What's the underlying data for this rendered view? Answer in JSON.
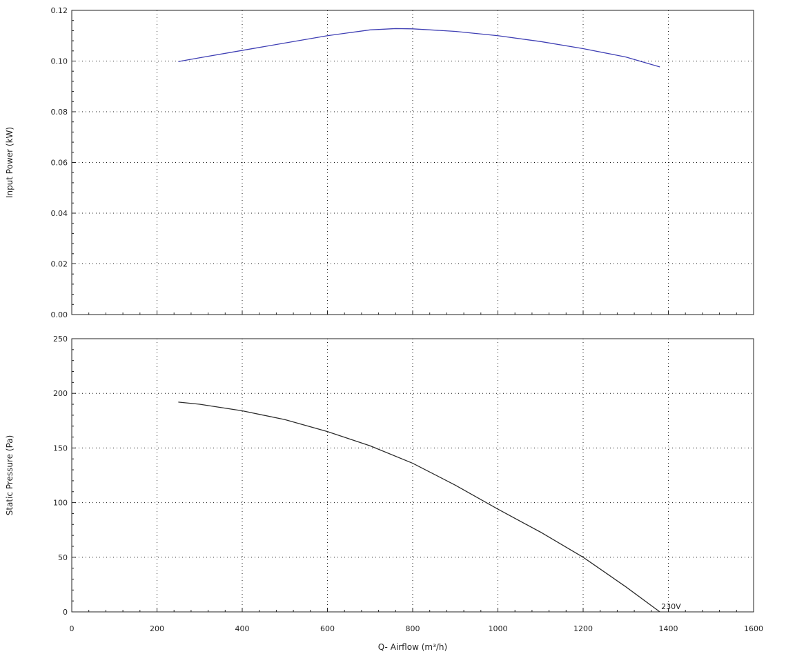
{
  "chart_data": {
    "type": "line",
    "x_axis": {
      "label": "Q- Airflow (m³/h)",
      "range": [
        0,
        1600
      ],
      "ticks": [
        0,
        200,
        400,
        600,
        800,
        1000,
        1200,
        1400,
        1600
      ],
      "tick_labels": [
        "0",
        "200",
        "400",
        "600",
        "800",
        "1000",
        "1200",
        "1400",
        "1600"
      ]
    },
    "grid": true,
    "panels": [
      {
        "id": "power",
        "ylabel": "Input Power (kW)",
        "ylim": [
          0,
          0.12
        ],
        "yticks": [
          0,
          0.02,
          0.04,
          0.06,
          0.08,
          0.1,
          0.12
        ],
        "ytick_labels": [
          "0.00",
          "0.02",
          "0.04",
          "0.06",
          "0.08",
          "0.10",
          "0.12"
        ],
        "series": [
          {
            "color": "#3f3fb4",
            "x": [
              250,
              300,
              400,
              500,
              600,
              700,
              760,
              800,
              900,
              1000,
              1100,
              1200,
              1300,
              1380
            ],
            "y": [
              0.0998,
              0.1013,
              0.1042,
              0.1071,
              0.11,
              0.1123,
              0.1128,
              0.1127,
              0.1117,
              0.11,
              0.1077,
              0.1049,
              0.1016,
              0.0977
            ]
          }
        ]
      },
      {
        "id": "pressure",
        "ylabel": "Static Pressure (Pa)",
        "ylim": [
          0,
          250
        ],
        "yticks": [
          0,
          50,
          100,
          150,
          200,
          250
        ],
        "ytick_labels": [
          "0",
          "50",
          "100",
          "150",
          "200",
          "250"
        ],
        "series": [
          {
            "color": "#2b2b2b",
            "x": [
              250,
              300,
              400,
              500,
              600,
              700,
              800,
              900,
              1000,
              1100,
              1200,
              1300,
              1380
            ],
            "y": [
              192,
              190,
              184,
              176,
              165,
              152,
              136,
              116,
              94,
              73,
              50,
              23,
              0
            ]
          }
        ],
        "annotations": [
          {
            "text": "230V",
            "x": 1380,
            "y": 0
          }
        ]
      }
    ]
  }
}
